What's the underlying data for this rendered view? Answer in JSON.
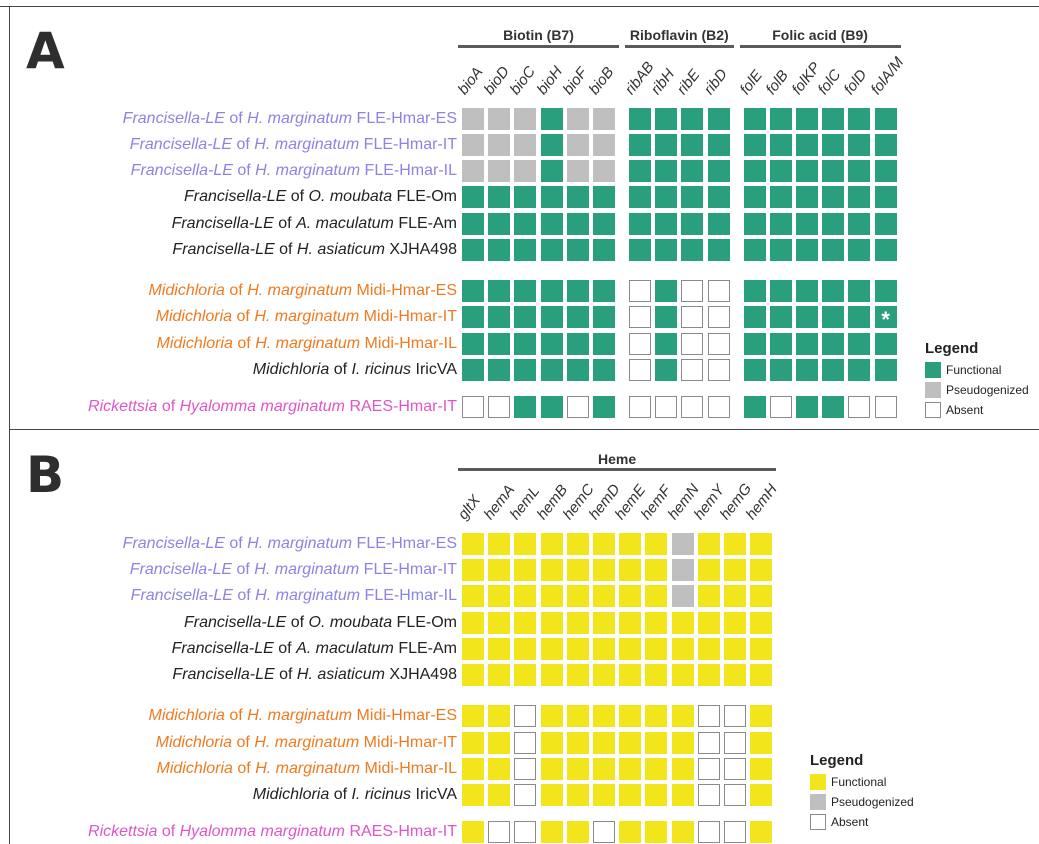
{
  "colors": {
    "francisella_hmar": "#8c83e6",
    "midichloria_hmar": "#f07a20",
    "rickettsia": "#e055c8",
    "other_label": "#222222",
    "functional_A": "#2a9f7d",
    "functional_B": "#f2e51c",
    "pseudogenized": "#bfbfbf",
    "absent": "#ffffff"
  },
  "rows": [
    {
      "genus": "Francisella-LE",
      "of": " of ",
      "host": "H. marginatum",
      "strain": " FLE-Hmar-ES",
      "color_key": "francisella_hmar"
    },
    {
      "genus": "Francisella-LE",
      "of": " of ",
      "host": "H. marginatum",
      "strain": " FLE-Hmar-IT",
      "color_key": "francisella_hmar"
    },
    {
      "genus": "Francisella-LE",
      "of": " of ",
      "host": "H. marginatum",
      "strain": " FLE-Hmar-IL",
      "color_key": "francisella_hmar"
    },
    {
      "genus": "Francisella-LE",
      "of": " of ",
      "host": "O. moubata",
      "strain": " FLE-Om",
      "color_key": "other_label"
    },
    {
      "genus": "Francisella-LE",
      "of": " of ",
      "host": "A. maculatum",
      "strain": " FLE-Am",
      "color_key": "other_label"
    },
    {
      "genus": "Francisella-LE",
      "of": " of ",
      "host": "H. asiaticum",
      "strain": " XJHA498",
      "color_key": "other_label"
    },
    {
      "genus": "Midichloria",
      "of": " of ",
      "host": "H. marginatum",
      "strain": " Midi-Hmar-ES",
      "color_key": "midichloria_hmar"
    },
    {
      "genus": "Midichloria",
      "of": " of ",
      "host": "H. marginatum",
      "strain": " Midi-Hmar-IT",
      "color_key": "midichloria_hmar"
    },
    {
      "genus": "Midichloria",
      "of": " of ",
      "host": "H. marginatum",
      "strain": " Midi-Hmar-IL",
      "color_key": "midichloria_hmar"
    },
    {
      "genus": "Midichloria",
      "of": " of ",
      "host": "I. ricinus",
      "strain": " IricVA",
      "color_key": "other_label"
    },
    {
      "genus": "Rickettsia",
      "of": " of ",
      "host": "Hyalomma marginatum",
      "strain": " RAES-Hmar-IT",
      "color_key": "rickettsia"
    }
  ],
  "panel_a": {
    "letter": "A",
    "groups": [
      {
        "title": "Biotin (B7)",
        "genes": [
          "bioA",
          "bioD",
          "bioC",
          "bioH",
          "bioF",
          "bioB"
        ]
      },
      {
        "title": "Riboflavin (B2)",
        "genes": [
          "ribAB",
          "ribH",
          "ribE",
          "ribD"
        ]
      },
      {
        "title": "Folic acid (B9)",
        "genes": [
          "folE",
          "folB",
          "folKP",
          "folC",
          "folD",
          "folA/M"
        ]
      }
    ],
    "matrix": [
      [
        "PPPFPP",
        "FFFF",
        "FFFFFF"
      ],
      [
        "PPPFPP",
        "FFFF",
        "FFFFFF"
      ],
      [
        "PPPFPP",
        "FFFF",
        "FFFFFF"
      ],
      [
        "FFFFFF",
        "FFFF",
        "FFFFFF"
      ],
      [
        "FFFFFF",
        "FFFF",
        "FFFFFF"
      ],
      [
        "FFFFFF",
        "FFFF",
        "FFFFFF"
      ],
      [
        "FFFFFF",
        "AFAA",
        "FFFFFF"
      ],
      [
        "FFFFFF",
        "AFAA",
        "FFFFFF"
      ],
      [
        "FFFFFF",
        "AFAA",
        "FFFFFF"
      ],
      [
        "FFFFFF",
        "AFAA",
        "FFFFFF"
      ],
      [
        "AAFFAF",
        "AAAA",
        "FAFFAA"
      ]
    ],
    "star": {
      "row": 7,
      "group": 2,
      "col": 5,
      "symbol": "*"
    },
    "legend": {
      "title": "Legend",
      "functional": "Functional",
      "pseudogenized": "Pseudogenized",
      "absent": "Absent"
    }
  },
  "panel_b": {
    "letter": "B",
    "groups": [
      {
        "title": "Heme",
        "genes": [
          "gltX",
          "hemA",
          "hemL",
          "hemB",
          "hemC",
          "hemD",
          "hemE",
          "hemF",
          "hemN",
          "hemY",
          "hemG",
          "hemH"
        ]
      }
    ],
    "matrix": [
      [
        "FFFFFFFFPFFF"
      ],
      [
        "FFFFFFFFPFFF"
      ],
      [
        "FFFFFFFFPFFF"
      ],
      [
        "FFFFFFFFFFFF"
      ],
      [
        "FFFFFFFFFFFF"
      ],
      [
        "FFFFFFFFFFFF"
      ],
      [
        "FFAFFFFFFAAF"
      ],
      [
        "FFAFFFFFFAAF"
      ],
      [
        "FFAFFFFFFAAF"
      ],
      [
        "FFAFFFFFFAAF"
      ],
      [
        "FAAFFAFFFAAF"
      ]
    ],
    "legend": {
      "title": "Legend",
      "functional": "Functional",
      "pseudogenized": "Pseudogenized",
      "absent": "Absent"
    }
  }
}
